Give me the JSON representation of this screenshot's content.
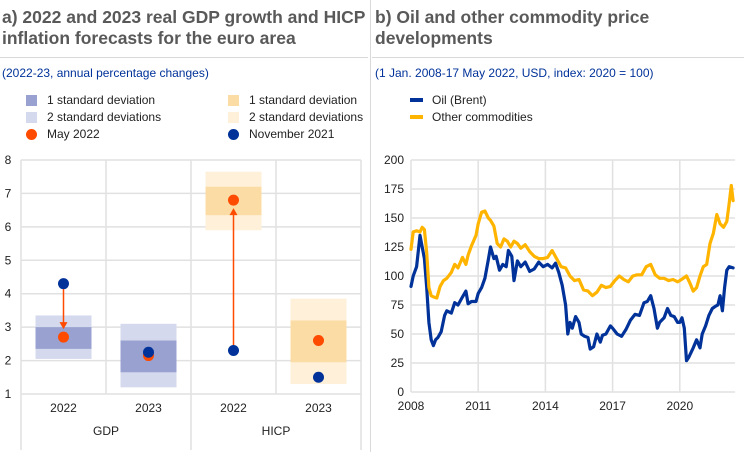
{
  "panel_a": {
    "title_line1": "a) 2022 and 2023 real GDP growth and HICP",
    "title_line2": "inflation forecasts for the euro area",
    "subtitle": "(2022-23, annual percentage changes)",
    "legend": [
      {
        "label": "1 standard deviation",
        "color": "#98a1d0",
        "kind": "box"
      },
      {
        "label": "1 standard deviation",
        "color": "#fcdca5",
        "kind": "box"
      },
      {
        "label": "2 standard deviations",
        "color": "#d5d9ed",
        "kind": "box"
      },
      {
        "label": "2 standard deviations",
        "color": "#fef0d9",
        "kind": "box"
      },
      {
        "label": "May 2022",
        "color": "#ff4b00",
        "kind": "dot"
      },
      {
        "label": "November 2021",
        "color": "#003299",
        "kind": "dot"
      }
    ]
  },
  "panel_b": {
    "title_line1": "b) Oil and other commodity price",
    "title_line2": "developments",
    "subtitle": "(1 Jan. 2008-17 May 2022, USD, index: 2020 = 100)",
    "legend": [
      {
        "label": "Oil (Brent)",
        "color": "#003299"
      },
      {
        "label": "Other commodities",
        "color": "#ffb400"
      }
    ]
  },
  "chart_data": [
    {
      "type": "range-dot",
      "title": "2022 and 2023 real GDP growth and HICP inflation forecasts for the euro area",
      "subtitle": "(2022-23, annual percentage changes)",
      "ylim": [
        1,
        8
      ],
      "yticks": [
        1,
        2,
        3,
        4,
        5,
        6,
        7,
        8
      ],
      "grid": true,
      "groups": [
        "GDP",
        "HICP"
      ],
      "categories": [
        {
          "group": "GDP",
          "label": "2022",
          "sd1": [
            2.35,
            3.0
          ],
          "sd2": [
            2.05,
            3.35
          ],
          "may2022": 2.7,
          "nov2021": 4.3,
          "arrow": true,
          "palette": "blue"
        },
        {
          "group": "GDP",
          "label": "2023",
          "sd1": [
            1.65,
            2.6
          ],
          "sd2": [
            1.2,
            3.1
          ],
          "may2022": 2.15,
          "nov2021": 2.25,
          "arrow": false,
          "palette": "blue"
        },
        {
          "group": "HICP",
          "label": "2022",
          "sd1": [
            6.35,
            7.2
          ],
          "sd2": [
            5.9,
            7.65
          ],
          "may2022": 6.8,
          "nov2021": 2.3,
          "arrow": true,
          "palette": "orange"
        },
        {
          "group": "HICP",
          "label": "2023",
          "sd1": [
            1.95,
            3.2
          ],
          "sd2": [
            1.3,
            3.85
          ],
          "may2022": 2.6,
          "nov2021": 1.5,
          "arrow": false,
          "palette": "orange"
        }
      ],
      "legend_position": "top"
    },
    {
      "type": "line",
      "title": "Oil and other commodity price developments",
      "subtitle": "(1 Jan. 2008-17 May 2022, USD, index: 2020 = 100)",
      "xlim": [
        2008,
        2022.4
      ],
      "xticks": [
        2008,
        2011,
        2014,
        2017,
        2020
      ],
      "ylim": [
        0,
        200
      ],
      "yticks": [
        0,
        25,
        50,
        75,
        100,
        125,
        150,
        175,
        200
      ],
      "grid": true,
      "legend_position": "top-left",
      "series": [
        {
          "name": "Oil (Brent)",
          "color": "#003299",
          "x": [
            2008.0,
            2008.1,
            2008.25,
            2008.4,
            2008.5,
            2008.6,
            2008.7,
            2008.8,
            2008.9,
            2009.0,
            2009.1,
            2009.2,
            2009.35,
            2009.5,
            2009.6,
            2009.8,
            2009.95,
            2010.1,
            2010.3,
            2010.45,
            2010.55,
            2010.7,
            2010.9,
            2011.0,
            2011.15,
            2011.3,
            2011.45,
            2011.55,
            2011.7,
            2011.8,
            2011.95,
            2012.1,
            2012.25,
            2012.35,
            2012.5,
            2012.6,
            2012.75,
            2012.9,
            2013.1,
            2013.3,
            2013.5,
            2013.7,
            2013.9,
            2014.1,
            2014.3,
            2014.45,
            2014.6,
            2014.75,
            2014.9,
            2015.0,
            2015.1,
            2015.2,
            2015.35,
            2015.5,
            2015.6,
            2015.75,
            2015.9,
            2016.0,
            2016.15,
            2016.3,
            2016.45,
            2016.55,
            2016.7,
            2016.9,
            2017.0,
            2017.2,
            2017.4,
            2017.6,
            2017.8,
            2018.0,
            2018.2,
            2018.4,
            2018.55,
            2018.7,
            2018.85,
            2019.0,
            2019.1,
            2019.3,
            2019.45,
            2019.6,
            2019.75,
            2019.9,
            2020.0,
            2020.1,
            2020.2,
            2020.3,
            2020.4,
            2020.6,
            2020.75,
            2020.9,
            2021.0,
            2021.15,
            2021.3,
            2021.45,
            2021.6,
            2021.7,
            2021.8,
            2021.9,
            2022.0,
            2022.1,
            2022.2,
            2022.38
          ],
          "values": [
            91,
            100,
            108,
            135,
            125,
            115,
            90,
            60,
            45,
            40,
            45,
            47,
            52,
            66,
            70,
            68,
            77,
            75,
            82,
            87,
            76,
            78,
            78,
            85,
            90,
            98,
            114,
            125,
            115,
            117,
            105,
            110,
            108,
            122,
            117,
            96,
            113,
            108,
            112,
            104,
            106,
            112,
            108,
            110,
            107,
            111,
            103,
            92,
            75,
            50,
            60,
            55,
            65,
            60,
            50,
            48,
            47,
            37,
            39,
            50,
            43,
            49,
            50,
            57,
            55,
            50,
            48,
            54,
            62,
            67,
            66,
            77,
            78,
            83,
            72,
            55,
            60,
            64,
            72,
            66,
            65,
            60,
            60,
            64,
            55,
            27,
            30,
            38,
            45,
            38,
            50,
            57,
            66,
            72,
            74,
            75,
            83,
            70,
            90,
            105,
            108,
            107
          ]
        },
        {
          "name": "Other commodities",
          "color": "#ffb400",
          "x": [
            2008.0,
            2008.1,
            2008.25,
            2008.4,
            2008.5,
            2008.6,
            2008.7,
            2008.8,
            2008.9,
            2009.0,
            2009.15,
            2009.3,
            2009.45,
            2009.6,
            2009.8,
            2009.95,
            2010.1,
            2010.3,
            2010.45,
            2010.55,
            2010.7,
            2010.9,
            2011.0,
            2011.15,
            2011.3,
            2011.45,
            2011.55,
            2011.7,
            2011.85,
            2012.0,
            2012.15,
            2012.3,
            2012.45,
            2012.6,
            2012.75,
            2012.9,
            2013.1,
            2013.3,
            2013.5,
            2013.7,
            2013.9,
            2014.1,
            2014.3,
            2014.5,
            2014.7,
            2014.9,
            2015.1,
            2015.3,
            2015.5,
            2015.7,
            2015.9,
            2016.1,
            2016.3,
            2016.5,
            2016.7,
            2016.9,
            2017.1,
            2017.3,
            2017.5,
            2017.7,
            2017.9,
            2018.1,
            2018.3,
            2018.5,
            2018.7,
            2018.9,
            2019.1,
            2019.3,
            2019.5,
            2019.7,
            2019.9,
            2020.0,
            2020.15,
            2020.3,
            2020.45,
            2020.6,
            2020.75,
            2020.9,
            2021.05,
            2021.2,
            2021.35,
            2021.5,
            2021.65,
            2021.8,
            2021.95,
            2022.1,
            2022.2,
            2022.3,
            2022.38
          ],
          "values": [
            123,
            138,
            139,
            138,
            142,
            140,
            120,
            90,
            83,
            82,
            81,
            91,
            96,
            98,
            103,
            110,
            107,
            116,
            110,
            118,
            126,
            135,
            145,
            155,
            156,
            150,
            148,
            143,
            128,
            125,
            132,
            130,
            125,
            130,
            128,
            124,
            127,
            121,
            117,
            115,
            115,
            116,
            122,
            115,
            108,
            107,
            100,
            96,
            97,
            88,
            87,
            83,
            86,
            92,
            90,
            91,
            96,
            100,
            97,
            95,
            100,
            101,
            101,
            108,
            110,
            101,
            98,
            98,
            96,
            97,
            95,
            96,
            98,
            100,
            94,
            87,
            90,
            100,
            108,
            110,
            128,
            137,
            153,
            145,
            142,
            147,
            162,
            178,
            165
          ]
        }
      ]
    }
  ]
}
